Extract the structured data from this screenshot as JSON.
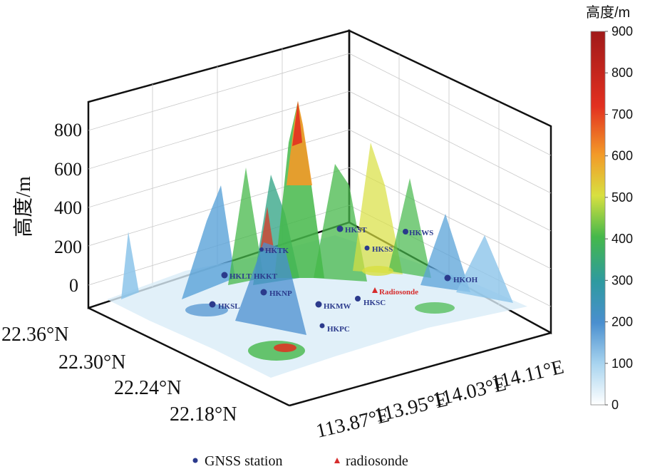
{
  "chart_data": {
    "type": "surface3d",
    "zlabel": "高度/m",
    "z_ticks": [
      "0",
      "200",
      "400",
      "600",
      "800"
    ],
    "y_ticks": [
      "22.36°N",
      "22.30°N",
      "22.24°N",
      "22.18°N"
    ],
    "x_ticks": [
      "113.87°E",
      "113.95°E",
      "114.03°E",
      "114.11°E"
    ],
    "colorbar": {
      "title": "高度/m",
      "range": [
        0,
        900
      ],
      "ticks": [
        "0",
        "100",
        "200",
        "300",
        "400",
        "500",
        "600",
        "700",
        "800",
        "900"
      ],
      "colors": [
        "#ffffff",
        "#a8d4ef",
        "#4a8fcf",
        "#2e9aa0",
        "#45b84a",
        "#d8e040",
        "#f39a28",
        "#e23020",
        "#a01a1a"
      ]
    },
    "stations": [
      {
        "name": "HKST",
        "lon": 114.02,
        "lat": 22.38
      },
      {
        "name": "HKWS",
        "lon": 114.09,
        "lat": 22.36
      },
      {
        "name": "HKSL",
        "lon": 113.93,
        "lat": 22.2
      },
      {
        "name": "HKLT",
        "lon": 113.97,
        "lat": 22.42
      },
      {
        "name": "HKNP",
        "lon": 113.97,
        "lat": 22.25
      },
      {
        "name": "HKMW",
        "lon": 113.99,
        "lat": 22.26
      },
      {
        "name": "HKSC",
        "lon": 114.05,
        "lat": 22.3
      },
      {
        "name": "HKPC",
        "lon": 114.02,
        "lat": 22.24
      },
      {
        "name": "HKOH",
        "lon": 114.2,
        "lat": 22.26
      },
      {
        "name": "HKKT",
        "lon": 114.0,
        "lat": 22.4
      },
      {
        "name": "HKSS",
        "lon": 114.05,
        "lat": 22.35
      },
      {
        "name": "HKTK",
        "lon": 113.98,
        "lat": 22.33
      }
    ],
    "radiosonde": {
      "label": "Radiosonde",
      "lon": 114.17,
      "lat": 22.31
    },
    "legend": [
      {
        "label": "GNSS station",
        "marker": "dot",
        "color": "#2b3a8c"
      },
      {
        "label": "radiosonde",
        "marker": "triangle",
        "color": "#d62d2d"
      }
    ],
    "legend_position": "bottom",
    "grid": true
  },
  "station_labels": {
    "hkst": "HKST",
    "hkws": "HKWS",
    "hksl": "HKSL",
    "hklt": "HKLT",
    "hkkt": "HKKT",
    "hknp": "HKNP",
    "hkmw": "HKMW",
    "hksc": "HKSC",
    "hkpc": "HKPC",
    "hkoh": "HKOH",
    "hkss": "HKSS",
    "hktk": "HKTK"
  }
}
